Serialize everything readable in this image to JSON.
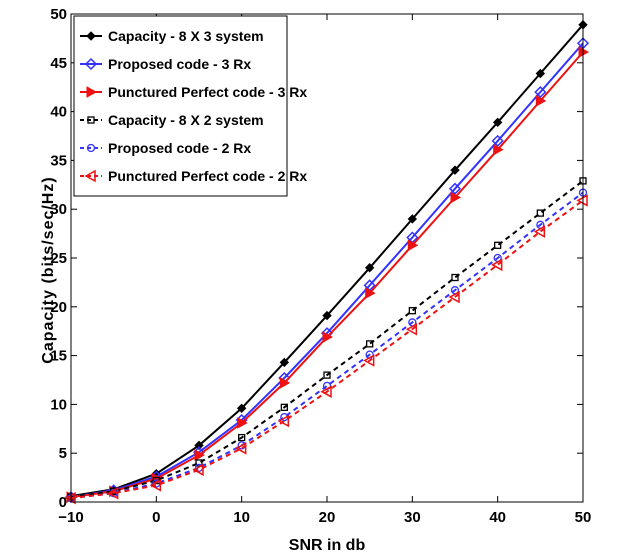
{
  "chart_data": {
    "type": "line",
    "title": "",
    "xlabel": "SNR in db",
    "ylabel": "Capacity (bits/sec/Hz)",
    "xlim": [
      -10,
      50
    ],
    "ylim": [
      0,
      50
    ],
    "x_ticks": [
      -10,
      0,
      10,
      20,
      30,
      40,
      50
    ],
    "y_ticks": [
      0,
      5,
      10,
      15,
      20,
      25,
      30,
      35,
      40,
      45,
      50
    ],
    "grid": false,
    "legend_position": "top-left",
    "x": [
      -10,
      -5,
      0,
      5,
      10,
      15,
      20,
      25,
      30,
      35,
      40,
      45,
      50
    ],
    "series": [
      {
        "name": "Capacity - 8 X 3 system",
        "color": "#000000",
        "line_style": "solid",
        "marker": "diamond-filled",
        "values": [
          0.6,
          1.3,
          2.9,
          5.8,
          9.6,
          14.3,
          19.1,
          24.0,
          29.0,
          34.0,
          38.9,
          43.9,
          48.9
        ]
      },
      {
        "name": "Proposed code - 3 Rx",
        "color": "#3333ff",
        "line_style": "solid",
        "marker": "diamond-open",
        "values": [
          0.5,
          1.2,
          2.6,
          5.1,
          8.4,
          12.7,
          17.3,
          22.2,
          27.1,
          32.1,
          37.0,
          42.0,
          47.0
        ]
      },
      {
        "name": "Punctured Perfect code - 3 Rx",
        "color": "#ee1111",
        "line_style": "solid",
        "marker": "triangle-right",
        "values": [
          0.5,
          1.1,
          2.4,
          4.8,
          8.1,
          12.2,
          16.9,
          21.4,
          26.3,
          31.2,
          36.1,
          41.1,
          46.1
        ]
      },
      {
        "name": "Capacity - 8 X 2 system",
        "color": "#000000",
        "line_style": "dashed",
        "marker": "square-open",
        "values": [
          0.5,
          1.1,
          2.2,
          4.0,
          6.6,
          9.7,
          13.0,
          16.2,
          19.6,
          23.0,
          26.3,
          29.6,
          32.9
        ]
      },
      {
        "name": "Proposed code - 2 Rx",
        "color": "#3333ff",
        "line_style": "dashed",
        "marker": "circle-open",
        "values": [
          0.4,
          0.9,
          1.9,
          3.5,
          5.8,
          8.7,
          11.9,
          15.1,
          18.4,
          21.7,
          25.0,
          28.4,
          31.7
        ]
      },
      {
        "name": "Punctured Perfect code - 2 Rx",
        "color": "#ee1111",
        "line_style": "dashed",
        "marker": "triangle-left",
        "values": [
          0.4,
          0.9,
          1.7,
          3.3,
          5.5,
          8.3,
          11.3,
          14.5,
          17.7,
          21.0,
          24.3,
          27.7,
          30.9
        ]
      }
    ]
  }
}
